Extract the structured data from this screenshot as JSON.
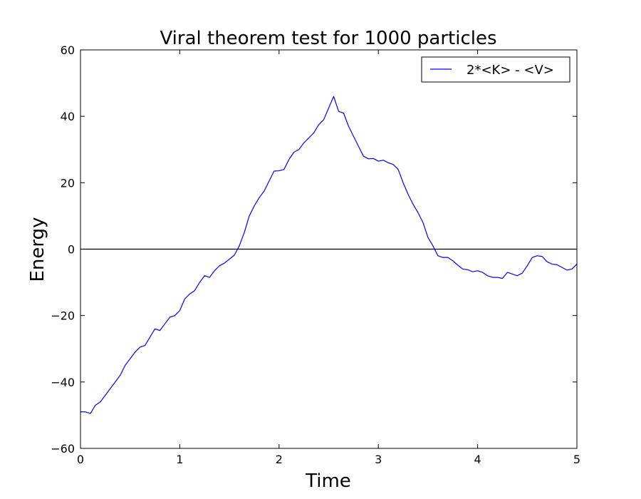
{
  "chart_data": {
    "type": "line",
    "title": "Viral theorem test for 1000 particles",
    "xlabel": "Time",
    "ylabel": "Energy",
    "xlim": [
      0,
      5
    ],
    "ylim": [
      -60,
      60
    ],
    "xticks": [
      "0",
      "1",
      "2",
      "3",
      "4",
      "5"
    ],
    "yticks": [
      "−60",
      "−40",
      "−20",
      "0",
      "20",
      "40",
      "60"
    ],
    "grid": false,
    "legend_position": "top-right",
    "reference_line": {
      "y": 0,
      "color": "#000000"
    },
    "series": [
      {
        "name": "2*<K> - <V>",
        "color": "#0000ff",
        "x": [
          0.0,
          0.05,
          0.1,
          0.15,
          0.2,
          0.25,
          0.3,
          0.35,
          0.4,
          0.45,
          0.5,
          0.55,
          0.6,
          0.65,
          0.7,
          0.75,
          0.8,
          0.85,
          0.9,
          0.95,
          1.0,
          1.05,
          1.1,
          1.15,
          1.2,
          1.25,
          1.3,
          1.35,
          1.4,
          1.45,
          1.5,
          1.55,
          1.6,
          1.65,
          1.7,
          1.75,
          1.8,
          1.85,
          1.9,
          1.95,
          2.0,
          2.05,
          2.1,
          2.15,
          2.2,
          2.25,
          2.3,
          2.35,
          2.4,
          2.45,
          2.5,
          2.55,
          2.6,
          2.65,
          2.7,
          2.75,
          2.8,
          2.85,
          2.9,
          2.95,
          3.0,
          3.05,
          3.1,
          3.15,
          3.2,
          3.25,
          3.3,
          3.35,
          3.4,
          3.45,
          3.5,
          3.55,
          3.6,
          3.65,
          3.7,
          3.75,
          3.8,
          3.85,
          3.9,
          3.95,
          4.0,
          4.05,
          4.1,
          4.15,
          4.2,
          4.25,
          4.3,
          4.35,
          4.4,
          4.45,
          4.5,
          4.55,
          4.6,
          4.65,
          4.7,
          4.75,
          4.8,
          4.85,
          4.9,
          4.95,
          5.0
        ],
        "y": [
          -49,
          -49,
          -49.5,
          -47,
          -46,
          -44,
          -42,
          -40,
          -38,
          -35,
          -33,
          -31,
          -29.5,
          -29,
          -26.5,
          -24,
          -24.5,
          -22.5,
          -20.5,
          -20,
          -18.5,
          -15,
          -13.5,
          -12.5,
          -10,
          -8,
          -8.5,
          -6.5,
          -5,
          -4.2,
          -3,
          -1.8,
          1,
          5,
          10,
          13,
          15.5,
          17.5,
          20.5,
          23.5,
          23.6,
          24,
          27,
          29.2,
          30,
          32,
          33.5,
          35,
          37.5,
          39,
          42.5,
          46,
          41.5,
          41,
          37,
          34,
          31,
          28,
          27.2,
          27.3,
          26.5,
          26.8,
          26,
          25.5,
          24,
          20,
          16.5,
          13.5,
          11,
          8,
          3.5,
          1,
          -2,
          -2.5,
          -2.5,
          -3.5,
          -4.8,
          -6,
          -6.2,
          -6.8,
          -6.5,
          -7,
          -8,
          -8.5,
          -8.5,
          -8.8,
          -7,
          -7.5,
          -8,
          -7.2,
          -5,
          -2.5,
          -2,
          -2.2,
          -3.8,
          -4.5,
          -4.7,
          -5.5,
          -6.3,
          -6,
          -4.5
        ]
      }
    ]
  }
}
